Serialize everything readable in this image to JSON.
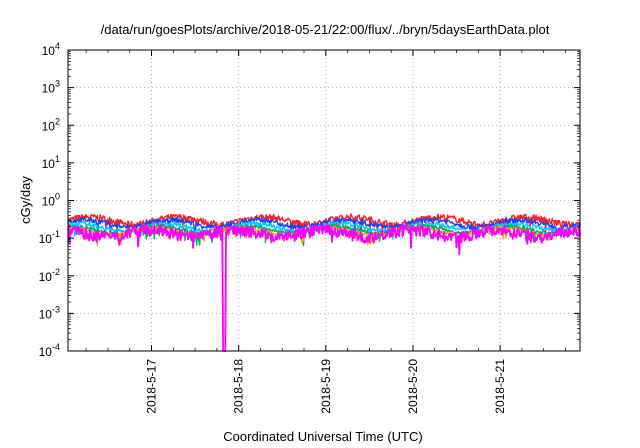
{
  "chart_data": {
    "type": "line",
    "title": "/data/run/goesPlots/archive/2018-05-21/22:00/flux/../bryn/5daysEarthData.plot",
    "xlabel": "Coordinated Universal Time (UTC)",
    "ylabel": "cGy/day",
    "yscale": "log",
    "ylim": [
      0.0001,
      10000
    ],
    "y_ticks": [
      {
        "value": 0.0001,
        "base": "10",
        "exp": "-4"
      },
      {
        "value": 0.001,
        "base": "10",
        "exp": "-3"
      },
      {
        "value": 0.01,
        "base": "10",
        "exp": "-2"
      },
      {
        "value": 0.1,
        "base": "10",
        "exp": "-1"
      },
      {
        "value": 1,
        "base": "10",
        "exp": "0"
      },
      {
        "value": 10,
        "base": "10",
        "exp": "1"
      },
      {
        "value": 100,
        "base": "10",
        "exp": "2"
      },
      {
        "value": 1000,
        "base": "10",
        "exp": "3"
      },
      {
        "value": 10000,
        "base": "10",
        "exp": "4"
      }
    ],
    "xlim": [
      "2018-05-16 01:00",
      "2018-05-21 22:00"
    ],
    "x_ticks": [
      "2018-5-17",
      "2018-5-18",
      "2018-5-19",
      "2018-5-20",
      "2018-5-21"
    ],
    "grid": true,
    "legend": "none",
    "series": [
      {
        "color": "#ff2020",
        "baseline": 0.3,
        "spread": 0.18
      },
      {
        "color": "#2040ff",
        "baseline": 0.25,
        "spread": 0.15
      },
      {
        "color": "#00c8ff",
        "baseline": 0.2,
        "spread": 0.12
      },
      {
        "color": "#00b050",
        "baseline": 0.17,
        "spread": 0.1
      },
      {
        "color": "#ffa500",
        "baseline": 0.155,
        "spread": 0.09
      },
      {
        "color": "#ff00ff",
        "baseline": 0.14,
        "spread": 0.3,
        "dropout_at": "2018-05-17 20:00",
        "dropout_value": 0.0001
      }
    ]
  }
}
